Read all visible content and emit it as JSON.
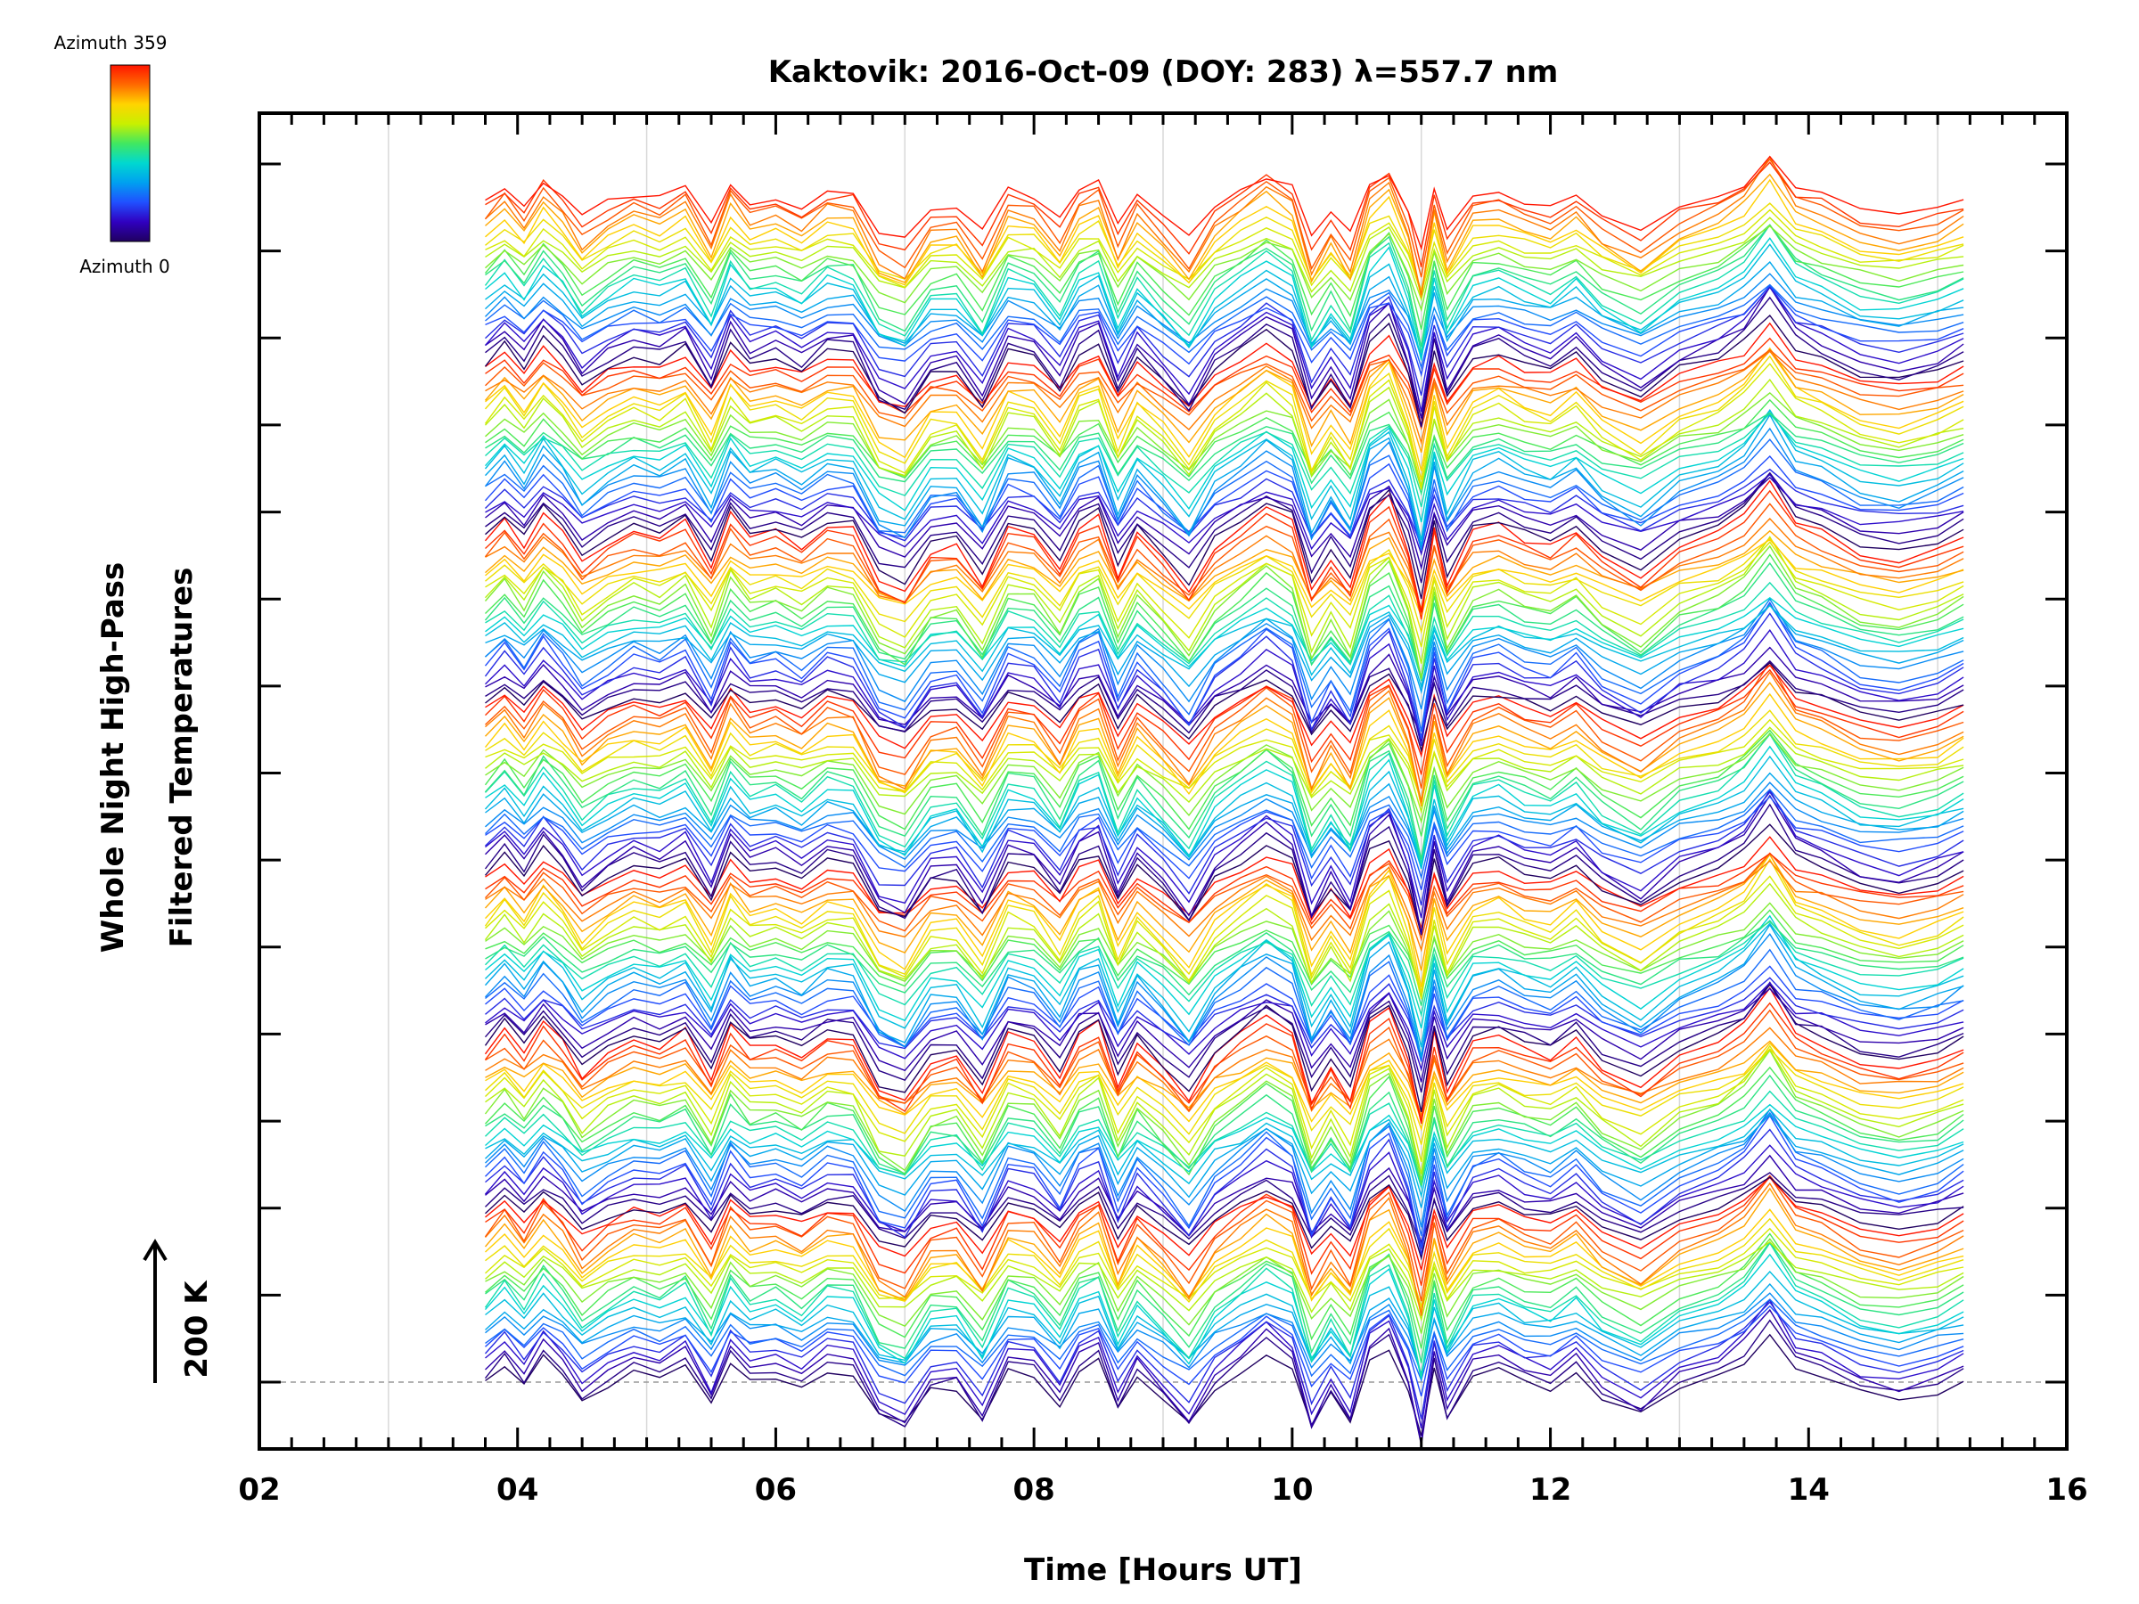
{
  "chart_data": {
    "type": "line",
    "title": "Kaktovik: 2016-Oct-09 (DOY: 283) λ=557.7 nm",
    "xlabel": "Time [Hours UT]",
    "ylabel_line1": "Whole Night High-Pass",
    "ylabel_line2": "Filtered Temperatures",
    "xlim": [
      2,
      16
    ],
    "x_tick_labels": [
      "02",
      "04",
      "06",
      "08",
      "10",
      "12",
      "14",
      "16"
    ],
    "x_tick_values": [
      2,
      4,
      6,
      8,
      10,
      12,
      14,
      16
    ],
    "x_minor_step": 0.25,
    "vertical_gridlines_at": [
      3,
      5,
      7,
      9,
      11,
      13,
      15
    ],
    "data_start_hour": 3.75,
    "data_end_hour": 15.2,
    "y_axis_numeric_labels": "none",
    "y_major_ticks": 15,
    "scale_bar_label": "200 K",
    "colorbar": {
      "label_top": "Azimuth 359",
      "label_bottom": "Azimuth 0",
      "colormap": [
        "#ff1500",
        "#ff6a00",
        "#ffd400",
        "#c8f000",
        "#40e860",
        "#00d8d0",
        "#00a0f0",
        "#2050ff",
        "#3000c0",
        "#200060"
      ]
    },
    "stack": {
      "description": "Stacked, vertically offset high-pass filtered temperature traces, one per azimuth, colored by azimuth",
      "groups": 7,
      "traces_per_group": 24,
      "azimuth_range": [
        0,
        359
      ],
      "baseline": "dashed gray line at bottom trace level"
    },
    "common_pattern": {
      "hours": [
        3.75,
        3.9,
        4.05,
        4.2,
        4.35,
        4.5,
        4.7,
        4.9,
        5.1,
        5.3,
        5.5,
        5.65,
        5.8,
        6.0,
        6.2,
        6.4,
        6.6,
        6.8,
        7.0,
        7.2,
        7.4,
        7.6,
        7.8,
        8.0,
        8.2,
        8.35,
        8.5,
        8.65,
        8.8,
        9.0,
        9.2,
        9.4,
        9.6,
        9.8,
        10.0,
        10.15,
        10.3,
        10.45,
        10.6,
        10.75,
        10.9,
        11.0,
        11.1,
        11.2,
        11.4,
        11.6,
        11.8,
        12.0,
        12.2,
        12.4,
        12.7,
        13.0,
        13.3,
        13.5,
        13.7,
        13.9,
        14.1,
        14.4,
        14.7,
        15.0,
        15.2
      ],
      "relative_K": [
        0,
        12,
        -2,
        16,
        4,
        -14,
        -2,
        6,
        2,
        10,
        -16,
        14,
        0,
        4,
        -4,
        8,
        6,
        -24,
        -30,
        -6,
        -4,
        -26,
        8,
        4,
        -16,
        8,
        14,
        -20,
        4,
        -12,
        -30,
        -4,
        8,
        20,
        10,
        -30,
        -10,
        -28,
        14,
        24,
        -6,
        -40,
        8,
        -24,
        4,
        8,
        0,
        -4,
        6,
        -10,
        -22,
        -4,
        4,
        14,
        34,
        10,
        4,
        -8,
        -12,
        -6,
        2
      ]
    }
  }
}
